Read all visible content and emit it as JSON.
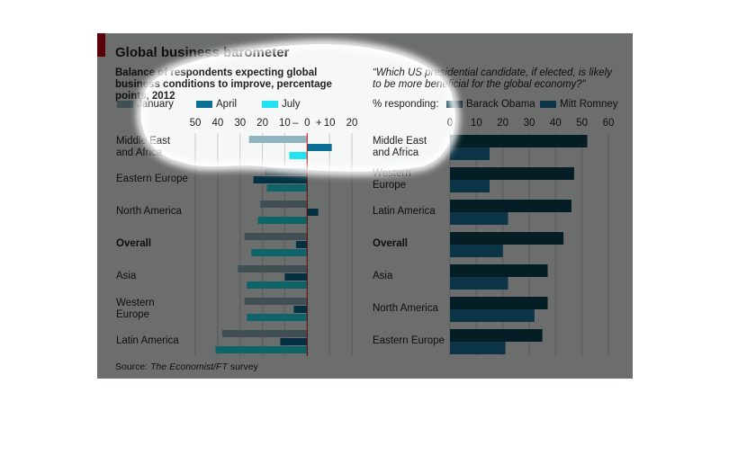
{
  "title": "Global business barometer",
  "source": {
    "prefix": "Source:",
    "italic": "The Economist/FT",
    "suffix": "survey"
  },
  "chart_data": [
    {
      "type": "bar",
      "orientation": "horizontal",
      "subtitle": "Balance of respondents expecting global business conditions to improve, percentage points, 2012",
      "categories": [
        "Middle East and Africa",
        "Eastern Europe",
        "North America",
        "Overall",
        "Asia",
        "Western Europe",
        "Latin America"
      ],
      "highlight_category": 3,
      "series": [
        {
          "name": "January",
          "color": "#8fb4c0",
          "values": [
            -26,
            -19,
            -21,
            -28,
            -31,
            -28,
            -38
          ]
        },
        {
          "name": "April",
          "color": "#0b6e95",
          "values": [
            11,
            -24,
            5,
            -5,
            -10,
            -6,
            -12
          ]
        },
        {
          "name": "July",
          "color": "#1fe3f0",
          "values": [
            -8,
            -18,
            -22,
            -25,
            -27,
            -27,
            -41
          ]
        }
      ],
      "xlim": [
        -50,
        20
      ],
      "xticks": [
        {
          "value": -50,
          "label": "50"
        },
        {
          "value": -40,
          "label": "40"
        },
        {
          "value": -30,
          "label": "30"
        },
        {
          "value": -20,
          "label": "20"
        },
        {
          "value": -10,
          "label": "10"
        },
        0,
        10,
        20
      ],
      "minus_sign": "–",
      "plus_sign": "+",
      "grid": true,
      "zero_line_color": "#e3120b"
    },
    {
      "type": "bar",
      "orientation": "horizontal",
      "subtitle": "“Which US presidential candidate, if elected, is likely to be more beneficial for the global economy?”",
      "legend_title": "% responding:",
      "categories": [
        "Middle East and Africa",
        "Western Europe",
        "Latin America",
        "Overall",
        "Asia",
        "North America",
        "Eastern Europe"
      ],
      "highlight_category": 3,
      "series": [
        {
          "name": "Barack Obama",
          "color": "#0c4356",
          "values": [
            52,
            47,
            46,
            43,
            37,
            37,
            35
          ]
        },
        {
          "name": "Mitt Romney",
          "color": "#1a7aa0",
          "values": [
            15,
            15,
            22,
            20,
            22,
            32,
            21
          ]
        }
      ],
      "xlim": [
        0,
        60
      ],
      "xticks": [
        0,
        10,
        20,
        30,
        40,
        50,
        60
      ],
      "grid": true
    }
  ]
}
